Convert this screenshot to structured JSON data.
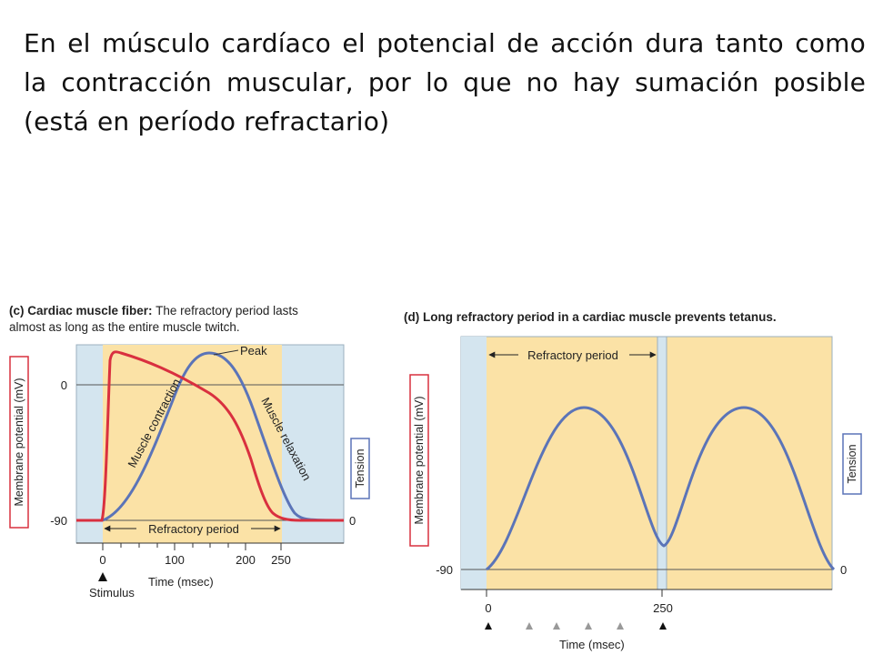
{
  "heading": "En el músculo cardíaco el potencial de acción dura tanto como la contracción muscular, por lo que no hay sumación posible (está en período refractario)",
  "colors": {
    "panel_tan": "#fbe2a6",
    "panel_blue": "#d4e5ef",
    "membrane_red": "#d9303f",
    "tension_blue": "#5b74b8"
  },
  "panel_c": {
    "caption_bold": "(c) Cardiac muscle fiber:",
    "caption_rest_line1": " The refractory period lasts",
    "caption_line2": "almost as long as the entire muscle twitch.",
    "y_left_label": "Membrane potential (mV)",
    "y_right_label": "Tension",
    "y_left_ticks": [
      "0",
      "-90"
    ],
    "y_right_tick": "0",
    "x_ticks": [
      "0",
      "100",
      "200",
      "250"
    ],
    "x_label": "Time (msec)",
    "stimulus_label": "Stimulus",
    "peak_label": "Peak",
    "contraction_label": "Muscle contraction",
    "relaxation_label": "Muscle relaxation",
    "refractory_label": "Refractory period"
  },
  "panel_d": {
    "caption": "(d) Long refractory period in a cardiac muscle prevents tetanus.",
    "y_left_label": "Membrane potential (mV)",
    "y_right_label": "Tension",
    "y_left_tick": "-90",
    "y_right_tick": "0",
    "x_ticks": [
      "0",
      "250"
    ],
    "x_label": "Time (msec)",
    "refractory_label": "Refractory period"
  }
}
